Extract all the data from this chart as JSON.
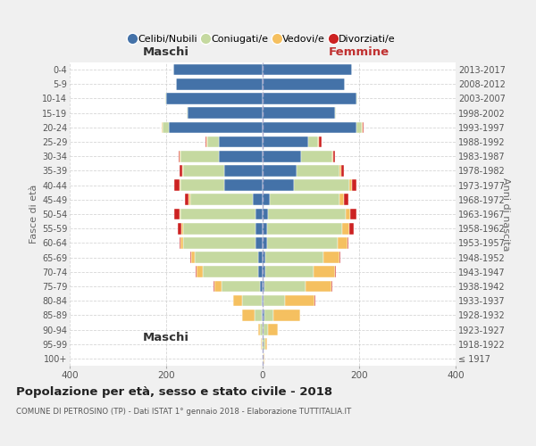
{
  "age_groups": [
    "100+",
    "95-99",
    "90-94",
    "85-89",
    "80-84",
    "75-79",
    "70-74",
    "65-69",
    "60-64",
    "55-59",
    "50-54",
    "45-49",
    "40-44",
    "35-39",
    "30-34",
    "25-29",
    "20-24",
    "15-19",
    "10-14",
    "5-9",
    "0-4"
  ],
  "birth_years": [
    "≤ 1917",
    "1918-1922",
    "1923-1927",
    "1928-1932",
    "1933-1937",
    "1938-1942",
    "1943-1947",
    "1948-1952",
    "1953-1957",
    "1958-1962",
    "1963-1967",
    "1968-1972",
    "1973-1977",
    "1978-1982",
    "1983-1987",
    "1988-1992",
    "1993-1997",
    "1998-2002",
    "2003-2007",
    "2008-2012",
    "2013-2017"
  ],
  "colors": {
    "celibi": "#4472a8",
    "coniugati": "#c5d9a0",
    "vedovi": "#f5c060",
    "divorziati": "#cc2222"
  },
  "male": {
    "celibi": [
      0,
      0,
      0,
      2,
      2,
      5,
      10,
      10,
      15,
      15,
      15,
      20,
      80,
      80,
      90,
      90,
      195,
      155,
      200,
      180,
      185
    ],
    "coniugati": [
      0,
      2,
      5,
      15,
      40,
      80,
      115,
      130,
      150,
      150,
      155,
      130,
      90,
      85,
      80,
      25,
      12,
      2,
      2,
      0,
      0
    ],
    "vedovi": [
      0,
      2,
      5,
      25,
      20,
      15,
      12,
      8,
      5,
      3,
      3,
      3,
      2,
      2,
      2,
      2,
      2,
      0,
      0,
      0,
      0
    ],
    "divorziati": [
      0,
      0,
      0,
      0,
      0,
      2,
      2,
      2,
      3,
      8,
      10,
      8,
      12,
      5,
      3,
      2,
      0,
      0,
      0,
      0,
      0
    ]
  },
  "female": {
    "celibi": [
      0,
      0,
      2,
      3,
      2,
      3,
      5,
      5,
      10,
      10,
      12,
      15,
      65,
      70,
      80,
      95,
      195,
      150,
      195,
      170,
      185
    ],
    "coniugati": [
      2,
      5,
      10,
      20,
      45,
      85,
      100,
      120,
      145,
      155,
      160,
      145,
      115,
      90,
      65,
      20,
      10,
      2,
      2,
      0,
      0
    ],
    "vedovi": [
      2,
      5,
      20,
      55,
      60,
      55,
      45,
      35,
      20,
      15,
      10,
      8,
      5,
      3,
      2,
      2,
      2,
      0,
      0,
      0,
      0
    ],
    "divorziati": [
      0,
      0,
      0,
      0,
      2,
      2,
      2,
      2,
      3,
      8,
      12,
      10,
      10,
      5,
      3,
      5,
      2,
      0,
      0,
      0,
      0
    ]
  },
  "title": "Popolazione per età, sesso e stato civile - 2018",
  "subtitle": "COMUNE DI PETROSINO (TP) - Dati ISTAT 1° gennaio 2018 - Elaborazione TUTTITALIA.IT",
  "xlabel_left": "Maschi",
  "xlabel_right": "Femmine",
  "ylabel_left": "Fasce di età",
  "ylabel_right": "Anni di nascita",
  "legend_labels": [
    "Celibi/Nubili",
    "Coniugati/e",
    "Vedovi/e",
    "Divorziati/e"
  ],
  "xlim": 400,
  "bg_color": "#f0f0f0",
  "plot_bg": "#ffffff",
  "grid_color": "#cccccc"
}
